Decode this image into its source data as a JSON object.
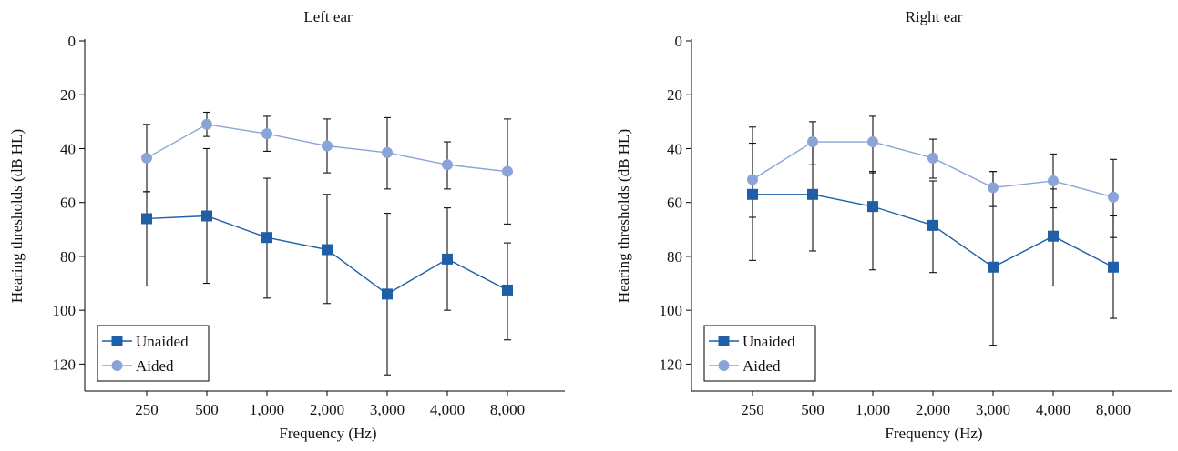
{
  "chart_data": [
    {
      "type": "line",
      "title": "Left ear",
      "xlabel": "Frequency (Hz)",
      "ylabel": "Hearing thresholds (dB HL)",
      "categories": [
        "250",
        "500",
        "1,000",
        "2,000",
        "3,000",
        "4,000",
        "8,000"
      ],
      "ylim": [
        0,
        130
      ],
      "y_inverted": true,
      "yticks": [
        0,
        20,
        40,
        60,
        80,
        100,
        120
      ],
      "legend_position": "bottom-left",
      "series": [
        {
          "name": "Unaided",
          "marker": "square",
          "color": "#1f5fa8",
          "values": [
            66,
            65,
            73,
            77.5,
            94,
            81,
            92.5
          ],
          "error_low": [
            56,
            40,
            51,
            57,
            64,
            62,
            75
          ],
          "error_high": [
            91,
            90,
            95.5,
            97.5,
            124,
            100,
            111
          ]
        },
        {
          "name": "Aided",
          "marker": "circle",
          "color": "#8aa4d8",
          "values": [
            43.5,
            31,
            34.5,
            39,
            41.5,
            46,
            48.5
          ],
          "error_low": [
            31,
            26.5,
            28,
            29,
            28.5,
            37.5,
            29
          ],
          "error_high": [
            56,
            35.5,
            41,
            49,
            55,
            55,
            68
          ]
        }
      ]
    },
    {
      "type": "line",
      "title": "Right ear",
      "xlabel": "Frequency (Hz)",
      "ylabel": "Hearing thresholds (dB HL)",
      "categories": [
        "250",
        "500",
        "1,000",
        "2,000",
        "3,000",
        "4,000",
        "8,000"
      ],
      "ylim": [
        0,
        130
      ],
      "y_inverted": true,
      "yticks": [
        0,
        20,
        40,
        60,
        80,
        100,
        120
      ],
      "legend_position": "bottom-left",
      "series": [
        {
          "name": "Unaided",
          "marker": "square",
          "color": "#1f5fa8",
          "values": [
            57,
            57,
            61.5,
            68.5,
            84,
            72.5,
            84
          ],
          "error_low": [
            38,
            36,
            48.5,
            52,
            48.5,
            55,
            65
          ],
          "error_high": [
            81.5,
            78,
            85,
            86,
            113,
            91,
            103
          ]
        },
        {
          "name": "Aided",
          "marker": "circle",
          "color": "#8aa4d8",
          "values": [
            51.5,
            37.5,
            37.5,
            43.5,
            54.5,
            52,
            58
          ],
          "error_low": [
            32,
            30,
            28,
            36.5,
            61.5,
            42,
            44
          ],
          "error_high": [
            65.5,
            46,
            49,
            51,
            48.5,
            62,
            73
          ]
        }
      ]
    }
  ]
}
